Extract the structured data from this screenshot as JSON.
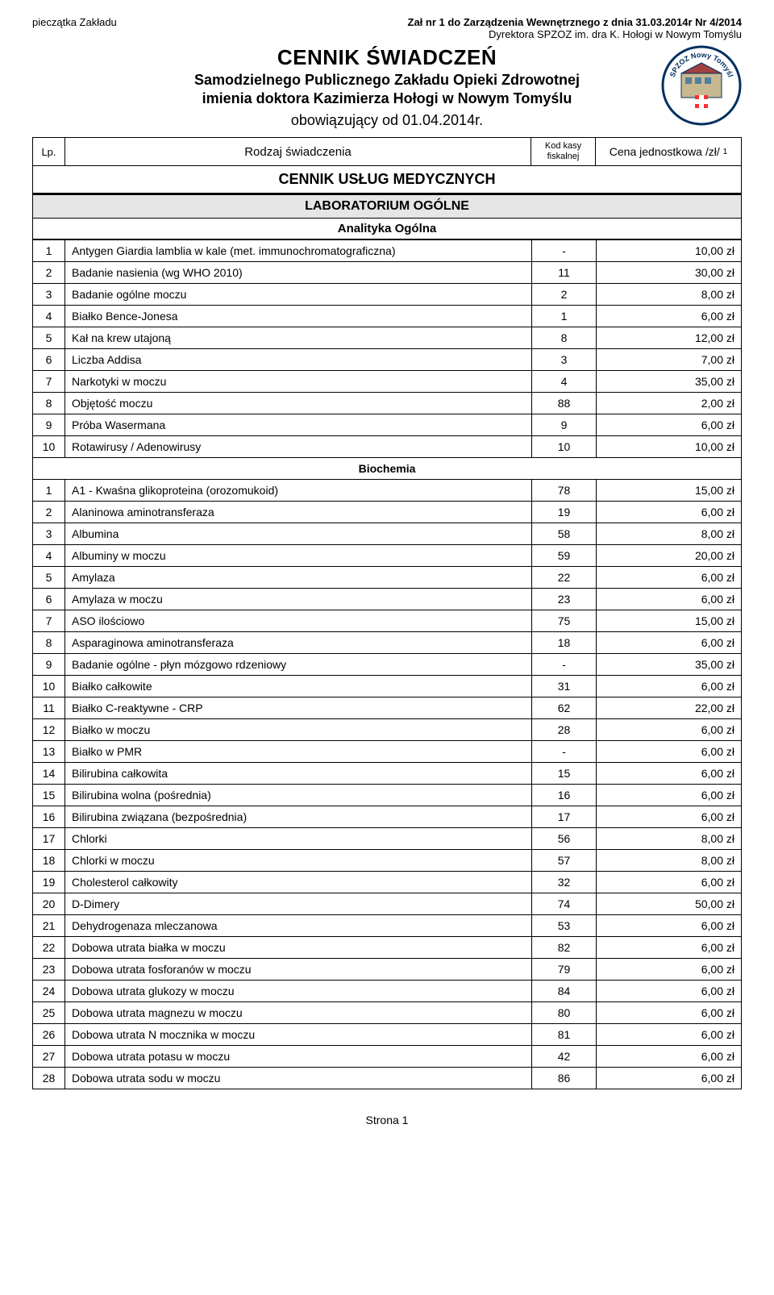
{
  "header": {
    "stamp_left": "pieczątka Zakładu",
    "attachment_bold": "Zał nr 1 do Zarządzenia Wewnętrznego z dnia 31.03.2014r Nr 4/2014",
    "attachment_line2": "Dyrektora SPZOZ im. dra K. Hołogi w Nowym Tomyślu",
    "title": "CENNIK ŚWIADCZEŃ",
    "subtitle1": "Samodzielnego Publicznego Zakładu Opieki Zdrowotnej",
    "subtitle2": "imienia doktora Kazimierza Hołogi w Nowym Tomyślu",
    "effective": "obowiązujący od 01.04.2014r.",
    "logo_text_top": "SPZOZ Nowy Tomyśl"
  },
  "column_headers": {
    "lp": "Lp.",
    "svc": "Rodzaj świadczenia",
    "kod": "Kod kasy fiskalnej",
    "cena": "Cena jednostkowa /zł/",
    "cena_sup": "1"
  },
  "section_main": "CENNIK USŁUG MEDYCZNYCH",
  "section_lab": "LABORATORIUM OGÓLNE",
  "cat_analityka": "Analityka Ogólna",
  "cat_biochem": "Biochemia",
  "analityka_rows": [
    {
      "n": "1",
      "name": "Antygen Giardia lamblia w kale (met. immunochromatograficzna)",
      "kod": "-",
      "price": "10,00 zł"
    },
    {
      "n": "2",
      "name": "Badanie nasienia (wg WHO 2010)",
      "kod": "11",
      "price": "30,00 zł"
    },
    {
      "n": "3",
      "name": "Badanie ogólne moczu",
      "kod": "2",
      "price": "8,00 zł"
    },
    {
      "n": "4",
      "name": "Białko Bence-Jonesa",
      "kod": "1",
      "price": "6,00 zł"
    },
    {
      "n": "5",
      "name": "Kał na krew utajoną",
      "kod": "8",
      "price": "12,00 zł"
    },
    {
      "n": "6",
      "name": "Liczba Addisa",
      "kod": "3",
      "price": "7,00 zł"
    },
    {
      "n": "7",
      "name": "Narkotyki w moczu",
      "kod": "4",
      "price": "35,00 zł"
    },
    {
      "n": "8",
      "name": "Objętość moczu",
      "kod": "88",
      "price": "2,00 zł"
    },
    {
      "n": "9",
      "name": "Próba Wasermana",
      "kod": "9",
      "price": "6,00 zł"
    },
    {
      "n": "10",
      "name": "Rotawirusy / Adenowirusy",
      "kod": "10",
      "price": "10,00 zł"
    }
  ],
  "biochem_rows": [
    {
      "n": "1",
      "name": "A1 - Kwaśna glikoproteina (orozomukoid)",
      "kod": "78",
      "price": "15,00 zł"
    },
    {
      "n": "2",
      "name": "Alaninowa aminotransferaza",
      "kod": "19",
      "price": "6,00 zł"
    },
    {
      "n": "3",
      "name": "Albumina",
      "kod": "58",
      "price": "8,00 zł"
    },
    {
      "n": "4",
      "name": "Albuminy w moczu",
      "kod": "59",
      "price": "20,00 zł"
    },
    {
      "n": "5",
      "name": "Amylaza",
      "kod": "22",
      "price": "6,00 zł"
    },
    {
      "n": "6",
      "name": "Amylaza w moczu",
      "kod": "23",
      "price": "6,00 zł"
    },
    {
      "n": "7",
      "name": "ASO ilościowo",
      "kod": "75",
      "price": "15,00 zł"
    },
    {
      "n": "8",
      "name": "Asparaginowa aminotransferaza",
      "kod": "18",
      "price": "6,00 zł"
    },
    {
      "n": "9",
      "name": "Badanie ogólne - płyn mózgowo rdzeniowy",
      "kod": "-",
      "price": "35,00 zł"
    },
    {
      "n": "10",
      "name": "Białko całkowite",
      "kod": "31",
      "price": "6,00 zł"
    },
    {
      "n": "11",
      "name": "Białko C-reaktywne - CRP",
      "kod": "62",
      "price": "22,00 zł"
    },
    {
      "n": "12",
      "name": "Białko w moczu",
      "kod": "28",
      "price": "6,00 zł"
    },
    {
      "n": "13",
      "name": "Białko w PMR",
      "kod": "-",
      "price": "6,00 zł"
    },
    {
      "n": "14",
      "name": "Bilirubina całkowita",
      "kod": "15",
      "price": "6,00 zł"
    },
    {
      "n": "15",
      "name": "Bilirubina wolna (pośrednia)",
      "kod": "16",
      "price": "6,00 zł"
    },
    {
      "n": "16",
      "name": "Bilirubina związana (bezpośrednia)",
      "kod": "17",
      "price": "6,00 zł"
    },
    {
      "n": "17",
      "name": "Chlorki",
      "kod": "56",
      "price": "8,00 zł"
    },
    {
      "n": "18",
      "name": "Chlorki w moczu",
      "kod": "57",
      "price": "8,00 zł"
    },
    {
      "n": "19",
      "name": "Cholesterol całkowity",
      "kod": "32",
      "price": "6,00 zł"
    },
    {
      "n": "20",
      "name": "D-Dimery",
      "kod": "74",
      "price": "50,00 zł"
    },
    {
      "n": "21",
      "name": "Dehydrogenaza mleczanowa",
      "kod": "53",
      "price": "6,00 zł"
    },
    {
      "n": "22",
      "name": "Dobowa utrata białka w moczu",
      "kod": "82",
      "price": "6,00 zł"
    },
    {
      "n": "23",
      "name": "Dobowa utrata fosforanów w moczu",
      "kod": "79",
      "price": "6,00 zł"
    },
    {
      "n": "24",
      "name": "Dobowa utrata glukozy w moczu",
      "kod": "84",
      "price": "6,00 zł"
    },
    {
      "n": "25",
      "name": "Dobowa utrata magnezu w moczu",
      "kod": "80",
      "price": "6,00 zł"
    },
    {
      "n": "26",
      "name": "Dobowa utrata N mocznika w moczu",
      "kod": "81",
      "price": "6,00 zł"
    },
    {
      "n": "27",
      "name": "Dobowa utrata potasu w moczu",
      "kod": "42",
      "price": "6,00 zł"
    },
    {
      "n": "28",
      "name": "Dobowa utrata sodu w moczu",
      "kod": "86",
      "price": "6,00 zł"
    }
  ],
  "footer": "Strona 1",
  "styling": {
    "page_bg": "#ffffff",
    "text_color": "#000000",
    "section_sub_bg": "#e6e6e6",
    "border_color": "#000000",
    "font_family": "Arial",
    "title_fontsize": 26,
    "subtitle_fontsize": 18,
    "body_fontsize": 14,
    "col_widths": {
      "lp": 40,
      "kod": 80,
      "price": 180
    }
  }
}
